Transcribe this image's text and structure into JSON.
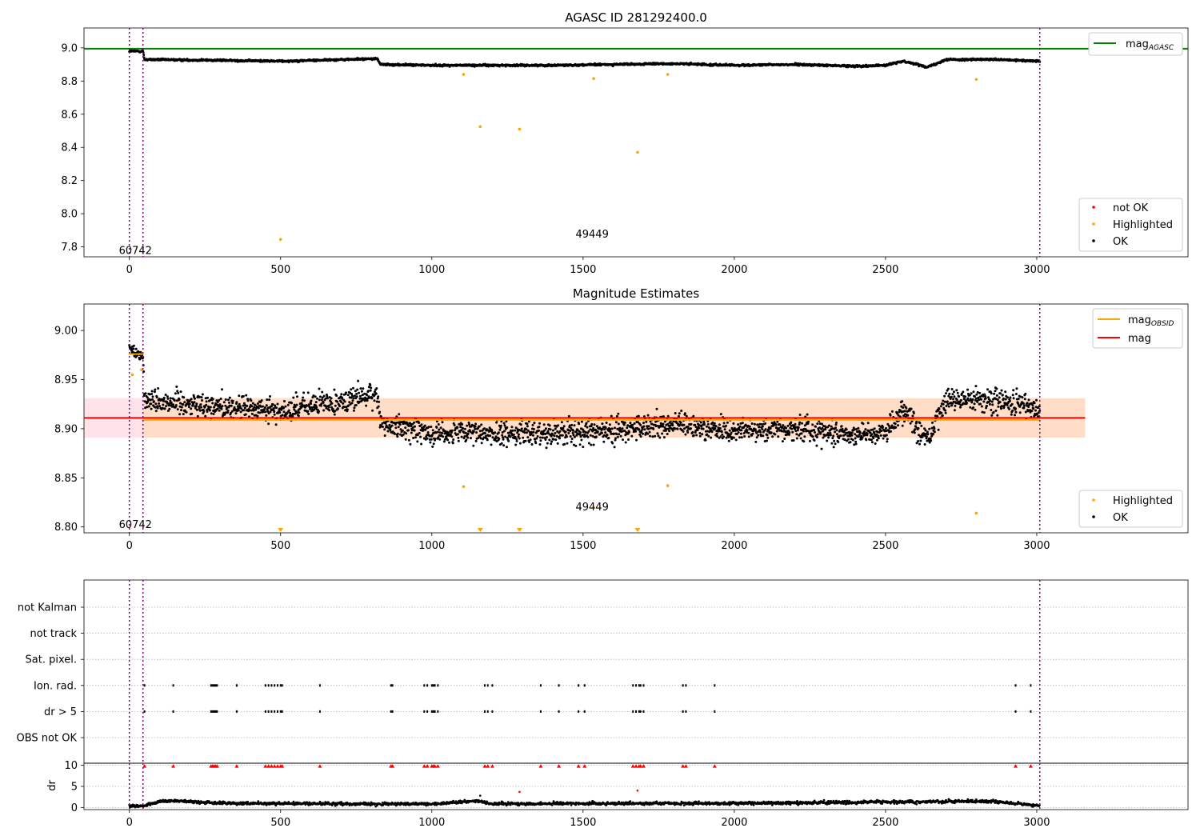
{
  "chart_data": [
    {
      "type": "scatter",
      "title": "AGASC ID 281292400.0",
      "xlabel": "",
      "ylabel": "",
      "xlim": [
        -150,
        3500
      ],
      "ylim": [
        7.74,
        9.12
      ],
      "xticks": [
        0,
        500,
        1000,
        1500,
        2000,
        2500,
        3000
      ],
      "yticks": [
        7.8,
        8.0,
        8.2,
        8.4,
        8.6,
        8.8,
        9.0
      ],
      "ytick_labels": [
        "7.8",
        "8.0",
        "8.2",
        "8.4",
        "8.6",
        "8.8",
        "9.0"
      ],
      "obsid_boundaries": [
        0,
        45,
        3010
      ],
      "obsid_labels": [
        {
          "x": 20,
          "y": 7.78,
          "text": "60742"
        },
        {
          "x": 1530,
          "y": 7.88,
          "text": "49449"
        }
      ],
      "reference_lines": [
        {
          "name": "mag_AGASC",
          "y": 8.995,
          "color": "#008000"
        }
      ],
      "ok_trend": {
        "x": [
          0,
          45,
          50,
          300,
          500,
          820,
          830,
          1000,
          1200,
          1400,
          1600,
          1800,
          2000,
          2200,
          2400,
          2500,
          2560,
          2640,
          2700,
          2850,
          3010
        ],
        "y": [
          8.98,
          8.98,
          8.93,
          8.925,
          8.92,
          8.935,
          8.9,
          8.895,
          8.895,
          8.895,
          8.9,
          8.905,
          8.895,
          8.9,
          8.89,
          8.895,
          8.92,
          8.885,
          8.93,
          8.93,
          8.92
        ]
      },
      "highlighted": {
        "x": [
          500,
          1105,
          1160,
          1290,
          1535,
          1680,
          1780,
          2800
        ],
        "y": [
          7.845,
          8.84,
          8.525,
          8.51,
          8.815,
          8.37,
          8.84,
          8.81
        ]
      },
      "not_ok": {
        "x": [],
        "y": []
      },
      "legend": [
        {
          "label": "mag",
          "sub": "AGASC",
          "kind": "line",
          "color": "#008000",
          "position": "top-right"
        },
        {
          "label": "not OK",
          "kind": "marker",
          "color": "#ff0000",
          "position": "bottom-right"
        },
        {
          "label": "Highlighted",
          "kind": "marker",
          "color": "#ffa500",
          "position": "bottom-right"
        },
        {
          "label": "OK",
          "kind": "marker",
          "color": "#000000",
          "position": "bottom-right"
        }
      ]
    },
    {
      "type": "scatter",
      "title": "Magnitude Estimates",
      "xlabel": "",
      "ylabel": "",
      "xlim": [
        -150,
        3500
      ],
      "ylim": [
        8.794,
        9.027
      ],
      "xticks": [
        0,
        500,
        1000,
        1500,
        2000,
        2500,
        3000
      ],
      "yticks": [
        8.8,
        8.85,
        8.9,
        8.95,
        9.0
      ],
      "ytick_labels": [
        "8.80",
        "8.85",
        "8.90",
        "8.95",
        "9.00"
      ],
      "obsid_boundaries": [
        0,
        45,
        3010
      ],
      "obsid_labels": [
        {
          "x": 20,
          "y": 8.803,
          "text": "60742"
        },
        {
          "x": 1530,
          "y": 8.821,
          "text": "49449"
        }
      ],
      "mag": 8.911,
      "mag_band": [
        8.891,
        8.931
      ],
      "mag_obsid": [
        {
          "x0": 0,
          "x1": 45,
          "y": 8.976
        },
        {
          "x0": 45,
          "x1": 3010,
          "y": 8.909
        }
      ],
      "ok_trend": {
        "x": [
          0,
          45,
          50,
          300,
          500,
          820,
          830,
          1000,
          1200,
          1400,
          1600,
          1800,
          2000,
          2200,
          2400,
          2500,
          2560,
          2640,
          2700,
          2850,
          3010
        ],
        "y": [
          8.982,
          8.974,
          8.93,
          8.923,
          8.918,
          8.935,
          8.905,
          8.896,
          8.895,
          8.896,
          8.898,
          8.904,
          8.898,
          8.9,
          8.894,
          8.897,
          8.92,
          8.888,
          8.93,
          8.93,
          8.92
        ]
      },
      "highlighted": {
        "x": [
          10,
          40,
          1105,
          1535,
          1780,
          2800
        ],
        "y": [
          8.955,
          8.96,
          8.841,
          8.82,
          8.842,
          8.814
        ]
      },
      "below_range": {
        "x": [
          500,
          1160,
          1290,
          1680
        ]
      },
      "legend": [
        {
          "label": "mag",
          "sub": "OBSID",
          "kind": "line",
          "color": "#ffa500",
          "position": "top-right"
        },
        {
          "label": "mag",
          "kind": "line",
          "color": "#ff0000",
          "position": "top-right"
        },
        {
          "label": "Highlighted",
          "kind": "marker",
          "color": "#ffa500",
          "position": "bottom-right"
        },
        {
          "label": "OK",
          "kind": "marker",
          "color": "#000000",
          "position": "bottom-right"
        }
      ]
    },
    {
      "type": "scatter",
      "title": "",
      "xlabel": "",
      "ylabel": "",
      "xlim": [
        -150,
        3500
      ],
      "flag_rows": [
        "not Kalman",
        "not track",
        "Sat. pixel.",
        "Ion. rad.",
        "dr > 5",
        "OBS not OK"
      ],
      "flag_points": {
        "Ion. rad.": [
          50,
          145,
          270,
          275,
          280,
          285,
          290,
          355,
          450,
          460,
          470,
          480,
          490,
          500,
          505,
          630,
          865,
          870,
          975,
          985,
          1000,
          1005,
          1010,
          1020,
          1175,
          1185,
          1200,
          1360,
          1420,
          1485,
          1505,
          1665,
          1675,
          1685,
          1690,
          1700,
          1830,
          1840,
          1935,
          2930,
          2980
        ],
        "dr > 5": [
          50,
          145,
          270,
          275,
          280,
          285,
          290,
          355,
          450,
          460,
          470,
          480,
          490,
          500,
          505,
          630,
          865,
          870,
          975,
          985,
          1000,
          1005,
          1010,
          1020,
          1175,
          1185,
          1200,
          1360,
          1420,
          1485,
          1505,
          1665,
          1675,
          1685,
          1690,
          1700,
          1830,
          1840,
          1935,
          2930,
          2980
        ]
      },
      "obsid_boundaries": [
        0,
        45,
        3010
      ]
    },
    {
      "type": "scatter",
      "title": "",
      "xlabel": "",
      "ylabel": "dr",
      "xlim": [
        -150,
        3500
      ],
      "ylim": [
        -0.5,
        10.5
      ],
      "xticks": [
        0,
        500,
        1000,
        1500,
        2000,
        2500,
        3000
      ],
      "yticks": [
        0,
        5,
        10
      ],
      "ytick_labels": [
        "0",
        "5",
        "10"
      ],
      "obsid_boundaries": [
        0,
        45,
        3010
      ],
      "dr_trend": {
        "x": [
          0,
          40,
          100,
          150,
          300,
          1000,
          1150,
          1200,
          2000,
          2850,
          3010
        ],
        "y": [
          0.3,
          0.4,
          1.3,
          1.6,
          1.0,
          0.8,
          1.6,
          0.9,
          1.0,
          1.5,
          0.4
        ]
      },
      "dr_outliers": {
        "x": [
          1160,
          1290,
          1680,
          2800
        ],
        "y": [
          2.8,
          3.7,
          4.0,
          1.9
        ]
      },
      "dr_clipped_x": [
        50,
        145,
        270,
        275,
        280,
        285,
        290,
        355,
        450,
        460,
        470,
        480,
        490,
        500,
        505,
        630,
        865,
        870,
        975,
        985,
        1000,
        1005,
        1010,
        1020,
        1175,
        1185,
        1200,
        1360,
        1420,
        1485,
        1505,
        1665,
        1675,
        1685,
        1690,
        1700,
        1830,
        1840,
        1935,
        2930,
        2980
      ]
    }
  ],
  "colors": {
    "ok": "#000000",
    "highlighted": "#ffa500",
    "not_ok": "#ff0000",
    "agasc_line": "#008000",
    "mag_line": "#ff0000",
    "mag_obsid_line": "#ffa500",
    "obsid_boundary": "#800080",
    "mag_band_fill": "#ffc0cb",
    "mag_band_obsid_fill": "#ffdab9",
    "grid": "#b0b0b0"
  }
}
